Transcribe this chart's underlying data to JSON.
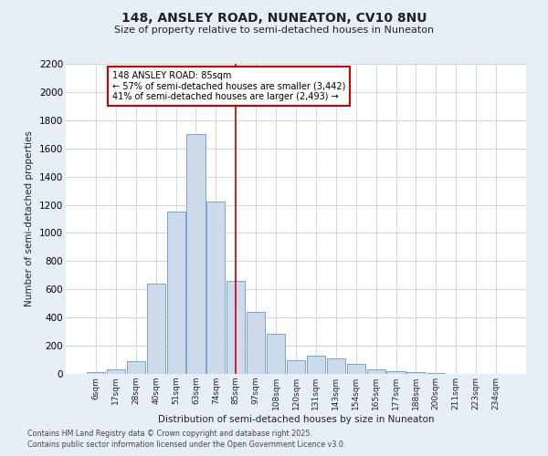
{
  "title_line1": "148, ANSLEY ROAD, NUNEATON, CV10 8NU",
  "title_line2": "Size of property relative to semi-detached houses in Nuneaton",
  "xlabel": "Distribution of semi-detached houses by size in Nuneaton",
  "ylabel": "Number of semi-detached properties",
  "annotation_title": "148 ANSLEY ROAD: 85sqm",
  "annotation_line2": "← 57% of semi-detached houses are smaller (3,442)",
  "annotation_line3": "41% of semi-detached houses are larger (2,493) →",
  "footer_line1": "Contains HM Land Registry data © Crown copyright and database right 2025.",
  "footer_line2": "Contains public sector information licensed under the Open Government Licence v3.0.",
  "property_size_label": "85sqm",
  "bar_color": "#ccdaeb",
  "bar_edge_color": "#6699cc",
  "vline_color": "#cc0000",
  "bg_color": "#e8eef5",
  "plot_bg_color": "#ffffff",
  "grid_color": "#c8d0d8",
  "annotation_box_color": "#ffffff",
  "annotation_box_edge": "#cc0000",
  "categories": [
    "6sqm",
    "17sqm",
    "28sqm",
    "40sqm",
    "51sqm",
    "63sqm",
    "74sqm",
    "85sqm",
    "97sqm",
    "108sqm",
    "120sqm",
    "131sqm",
    "143sqm",
    "154sqm",
    "165sqm",
    "177sqm",
    "188sqm",
    "200sqm",
    "211sqm",
    "223sqm",
    "234sqm"
  ],
  "values": [
    10,
    30,
    90,
    640,
    1150,
    1700,
    1220,
    660,
    440,
    285,
    100,
    130,
    110,
    70,
    30,
    20,
    10,
    5,
    2,
    2,
    2
  ],
  "ylim": [
    0,
    2200
  ],
  "yticks": [
    0,
    200,
    400,
    600,
    800,
    1000,
    1200,
    1400,
    1600,
    1800,
    2000,
    2200
  ],
  "prop_bar_index": 7
}
